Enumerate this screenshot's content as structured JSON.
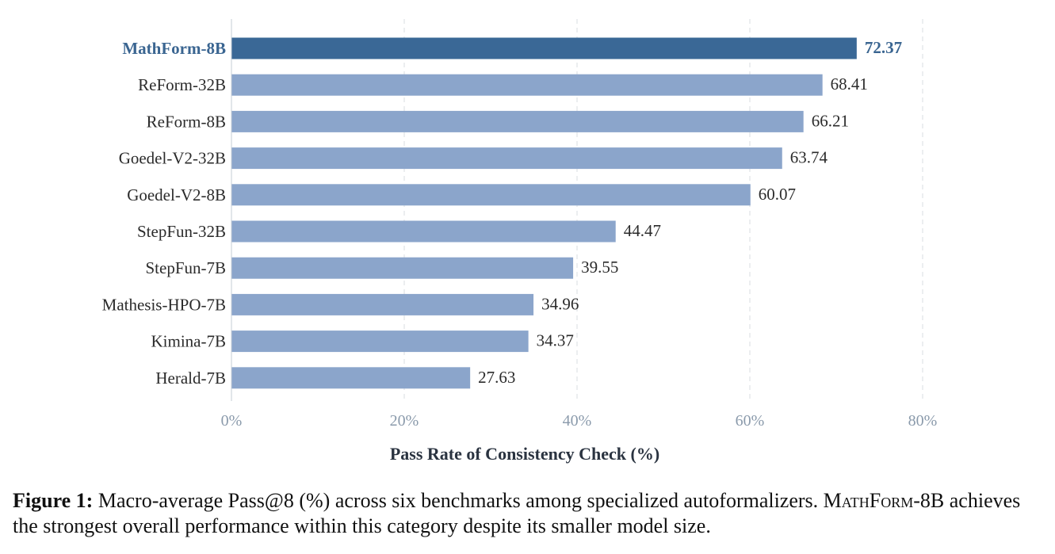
{
  "chart_data": {
    "type": "bar",
    "orientation": "horizontal",
    "categories": [
      "MathForm-8B",
      "ReForm-32B",
      "ReForm-8B",
      "Goedel-V2-32B",
      "Goedel-V2-8B",
      "StepFun-32B",
      "StepFun-7B",
      "Mathesis-HPO-7B",
      "Kimina-7B",
      "Herald-7B"
    ],
    "values": [
      72.37,
      68.41,
      66.21,
      63.74,
      60.07,
      44.47,
      39.55,
      34.96,
      34.37,
      27.63
    ],
    "value_labels": [
      "72.37",
      "68.41",
      "66.21",
      "63.74",
      "60.07",
      "44.47",
      "39.55",
      "34.96",
      "34.37",
      "27.63"
    ],
    "highlight": "MathForm-8B",
    "xlabel": "Pass Rate of Consistency Check (%)",
    "xlim": [
      0,
      80
    ],
    "xticks": [
      0,
      20,
      40,
      60,
      80
    ],
    "xtick_labels": [
      "0%",
      "20%",
      "40%",
      "60%",
      "80%"
    ],
    "grid": "vertical dashed",
    "colors": {
      "highlight_bar": "#3a6896",
      "bar": "#8ba5cb",
      "highlight_text": "#3a6591",
      "grid": "#dadde2",
      "tick": "#8a9aab"
    }
  },
  "caption": {
    "label": "Figure 1:",
    "text_before": " Macro-average Pass@8 (%) across six benchmarks among specialized autoformalizers. ",
    "model_name": "MathForm",
    "text_after": "-8B achieves the strongest overall performance within this category despite its smaller model size."
  }
}
